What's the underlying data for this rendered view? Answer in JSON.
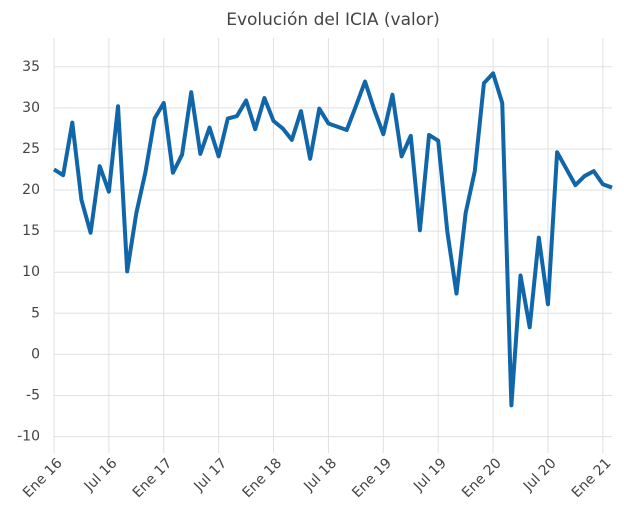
{
  "chart_data": {
    "type": "line",
    "title": "Evolución del ICIA (valor)",
    "x": [
      "2016-01",
      "2016-02",
      "2016-03",
      "2016-04",
      "2016-05",
      "2016-06",
      "2016-07",
      "2016-08",
      "2016-09",
      "2016-10",
      "2016-11",
      "2016-12",
      "2017-01",
      "2017-02",
      "2017-03",
      "2017-04",
      "2017-05",
      "2017-06",
      "2017-07",
      "2017-08",
      "2017-09",
      "2017-10",
      "2017-11",
      "2017-12",
      "2018-01",
      "2018-02",
      "2018-03",
      "2018-04",
      "2018-05",
      "2018-06",
      "2018-07",
      "2018-08",
      "2018-09",
      "2018-10",
      "2018-11",
      "2018-12",
      "2019-01",
      "2019-02",
      "2019-03",
      "2019-04",
      "2019-05",
      "2019-06",
      "2019-07",
      "2019-08",
      "2019-09",
      "2019-10",
      "2019-11",
      "2019-12",
      "2020-01",
      "2020-02",
      "2020-03",
      "2020-04",
      "2020-05",
      "2020-06",
      "2020-07",
      "2020-08",
      "2020-09",
      "2020-10",
      "2020-11",
      "2020-12",
      "2021-01",
      "2021-02"
    ],
    "series": [
      {
        "name": "ICIA",
        "color": "#1166aa",
        "values": [
          22.5,
          21.8,
          28.2,
          18.8,
          14.8,
          22.9,
          19.8,
          30.2,
          10.1,
          17.2,
          22.2,
          28.7,
          30.6,
          22.1,
          24.3,
          31.9,
          24.4,
          27.6,
          24.1,
          28.7,
          29.0,
          30.9,
          27.4,
          31.2,
          28.4,
          27.5,
          26.1,
          29.6,
          23.8,
          29.9,
          28.1,
          27.7,
          27.3,
          30.2,
          33.2,
          29.8,
          26.8,
          31.6,
          24.1,
          26.6,
          15.1,
          26.7,
          26.0,
          14.9,
          7.4,
          17.2,
          22.3,
          33.0,
          34.2,
          30.6,
          -6.2,
          9.6,
          3.3,
          14.2,
          6.1,
          24.6,
          22.6,
          20.6,
          21.7,
          22.3,
          20.7,
          20.3
        ]
      }
    ],
    "xlim": [
      "2016-01",
      "2021-02"
    ],
    "xticks": [
      {
        "value": "2016-01",
        "label": "Ene 16"
      },
      {
        "value": "2016-07",
        "label": "Jul 16"
      },
      {
        "value": "2017-01",
        "label": "Ene 17"
      },
      {
        "value": "2017-07",
        "label": "Jul 17"
      },
      {
        "value": "2018-01",
        "label": "Ene 18"
      },
      {
        "value": "2018-07",
        "label": "Jul 18"
      },
      {
        "value": "2019-01",
        "label": "Ene 19"
      },
      {
        "value": "2019-07",
        "label": "Jul 19"
      },
      {
        "value": "2020-01",
        "label": "Ene 20"
      },
      {
        "value": "2020-07",
        "label": "Jul 20"
      },
      {
        "value": "2021-01",
        "label": "Ene 21"
      }
    ],
    "ylim": [
      -12,
      38.5
    ],
    "yticks": [
      -10,
      -5,
      0,
      5,
      10,
      15,
      20,
      25,
      30,
      35
    ],
    "grid": true
  }
}
